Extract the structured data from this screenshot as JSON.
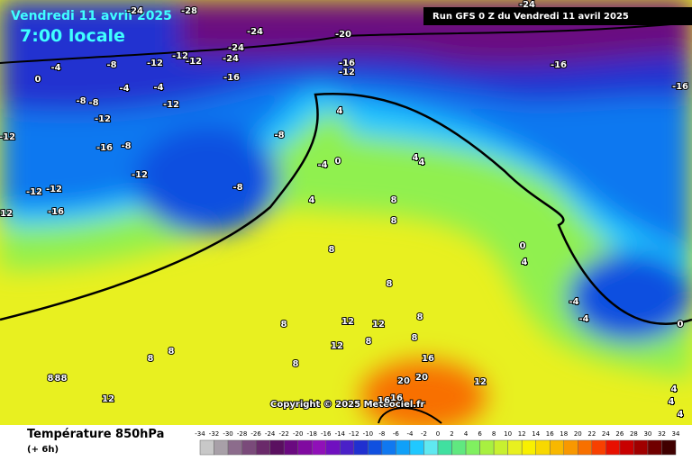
{
  "header": {
    "date": "Vendredi 11 avril 2025",
    "time": "7:00 locale",
    "run": "Run GFS 0 Z du Vendredi 11 avril 2025"
  },
  "copyright": "Copyright © 2025 Meteociel.fr",
  "footer": {
    "title": "Température 850hPa",
    "offset": "(+ 6h)"
  },
  "colorbar": {
    "ticks": [
      -34,
      -32,
      -30,
      -28,
      -26,
      -24,
      -22,
      -20,
      -18,
      -16,
      -14,
      -12,
      -10,
      -8,
      -6,
      -4,
      -2,
      0,
      2,
      4,
      6,
      8,
      10,
      12,
      14,
      16,
      18,
      20,
      22,
      24,
      26,
      28,
      30,
      32,
      34
    ],
    "colors": [
      "#c8c8c8",
      "#a8a0a8",
      "#8c6c8c",
      "#7a4a7a",
      "#6a2a6a",
      "#5a1060",
      "#6a0a80",
      "#800aa0",
      "#9010b8",
      "#7010c0",
      "#4a20c8",
      "#2030d0",
      "#1050e0",
      "#1078f0",
      "#10a0f8",
      "#20c8ff",
      "#60e8f0",
      "#40e0a0",
      "#60e880",
      "#80f060",
      "#a8f040",
      "#c8f030",
      "#e8f020",
      "#f8f000",
      "#f8d800",
      "#f8b800",
      "#f89800",
      "#f87000",
      "#f84000",
      "#e81000",
      "#c80000",
      "#a00000",
      "#700000",
      "#400000"
    ]
  },
  "map": {
    "contour_labels": [
      "-24",
      "-28",
      "-24",
      "-20",
      "-24",
      "-24",
      "-16",
      "-12",
      "-16",
      "-16",
      "-16",
      "-24",
      "-4",
      "0",
      "-8",
      "-12",
      "-12",
      "-12",
      "-4",
      "-4",
      "-8",
      "-8",
      "-12",
      "-12",
      "-12",
      "-16",
      "-8",
      "-8",
      "-12",
      "-12",
      "-12",
      "-8",
      "-16",
      "-12",
      "4",
      "0",
      "-4",
      "4",
      "4",
      "4",
      "8",
      "8",
      "8",
      "0",
      "4",
      "8",
      "-4",
      "-4",
      "0",
      "8",
      "12",
      "12",
      "8",
      "8",
      "12",
      "8",
      "8",
      "8",
      "8",
      "8",
      "16",
      "20",
      "20",
      "16",
      "16",
      "8",
      "8",
      "12",
      "12",
      "4",
      "4",
      "4"
    ]
  }
}
